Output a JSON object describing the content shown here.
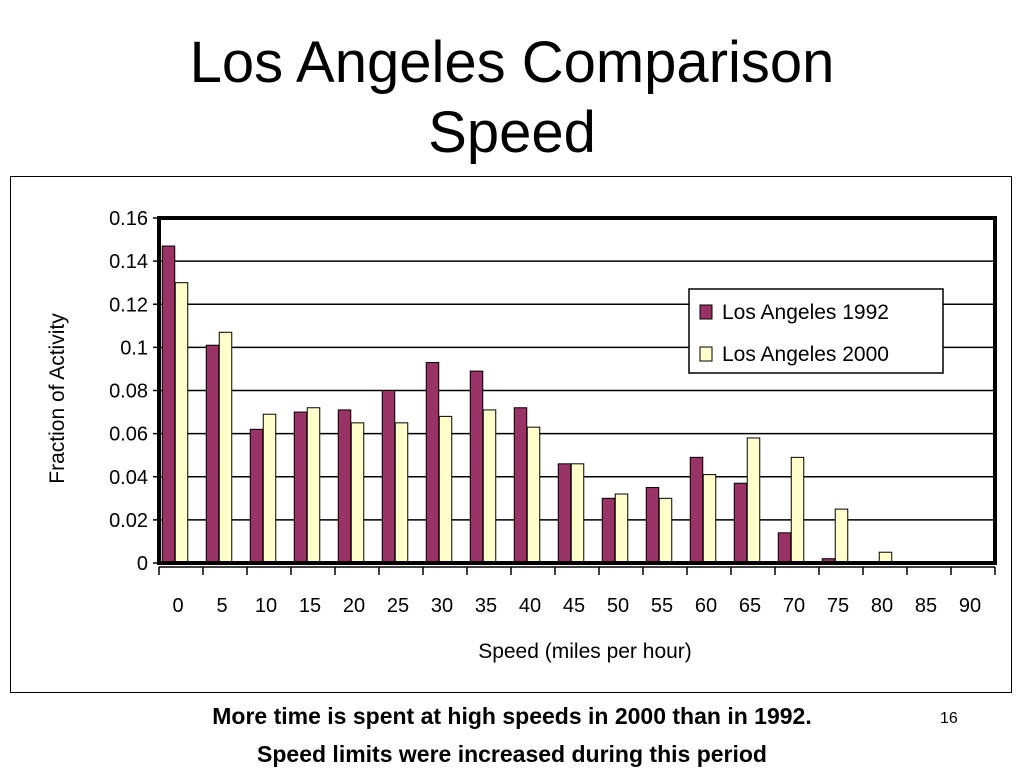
{
  "slide": {
    "title_line1": "Los Angeles Comparison",
    "title_line2": "Speed",
    "caption_line1": "More time is spent at high speeds in 2000 than in 1992.",
    "caption_line2": "Speed limits were increased during this period",
    "slide_number": "16"
  },
  "chart_data": {
    "type": "bar",
    "xlabel": "Speed (miles per hour)",
    "ylabel": "Fraction of Activity",
    "ylim": [
      0,
      0.16
    ],
    "yticks": [
      "0",
      "0.02",
      "0.04",
      "0.06",
      "0.08",
      "0.1",
      "0.12",
      "0.14",
      "0.16"
    ],
    "categories": [
      "0",
      "5",
      "10",
      "15",
      "20",
      "25",
      "30",
      "35",
      "40",
      "45",
      "50",
      "55",
      "60",
      "65",
      "70",
      "75",
      "80",
      "85",
      "90"
    ],
    "grid": true,
    "legend_position": "top-right",
    "series": [
      {
        "name": "Los Angeles 1992",
        "color": "#993366",
        "values": [
          0.147,
          0.101,
          0.062,
          0.07,
          0.071,
          0.08,
          0.093,
          0.089,
          0.072,
          0.046,
          0.03,
          0.035,
          0.049,
          0.037,
          0.014,
          0.002,
          0.0,
          0.0,
          0.0
        ]
      },
      {
        "name": "Los Angeles 2000",
        "color": "#FFFFCC",
        "values": [
          0.13,
          0.107,
          0.069,
          0.072,
          0.065,
          0.065,
          0.068,
          0.071,
          0.063,
          0.046,
          0.032,
          0.03,
          0.041,
          0.058,
          0.049,
          0.025,
          0.005,
          0.0,
          0.0
        ]
      }
    ]
  }
}
